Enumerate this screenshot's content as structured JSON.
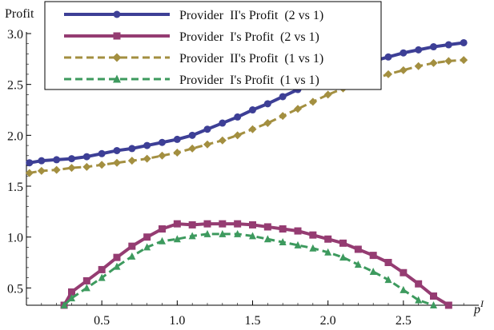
{
  "chart_data": {
    "type": "line",
    "title": "",
    "ylabel": "Profit",
    "xlabel": "p",
    "xlabel_superscript": "I",
    "xlim": [
      0,
      3.0
    ],
    "ylim": [
      0.33,
      3.0
    ],
    "xticks": [
      {
        "value": 0.5,
        "label": "0.5"
      },
      {
        "value": 1.0,
        "label": "1.0"
      },
      {
        "value": 1.5,
        "label": "1.5"
      },
      {
        "value": 2.0,
        "label": "2.0"
      },
      {
        "value": 2.5,
        "label": "2.5"
      }
    ],
    "yticks": [
      {
        "value": 0.5,
        "label": "0.5"
      },
      {
        "value": 1.0,
        "label": "1.0"
      },
      {
        "value": 1.5,
        "label": "1.5"
      },
      {
        "value": 2.0,
        "label": "2.0"
      },
      {
        "value": 2.5,
        "label": "2.5"
      },
      {
        "value": 3.0,
        "label": "3.0"
      }
    ],
    "legend_position": "top-center",
    "series": [
      {
        "name": "Provider  II's Profit  (2 vs 1)",
        "color": "#3d3f96",
        "dash": "solid",
        "marker": "circle",
        "x": [
          0.02,
          0.1,
          0.2,
          0.3,
          0.4,
          0.5,
          0.6,
          0.7,
          0.8,
          0.9,
          1.0,
          1.1,
          1.2,
          1.3,
          1.4,
          1.5,
          1.6,
          1.7,
          1.8,
          1.9,
          2.0,
          2.1,
          2.2,
          2.3,
          2.4,
          2.5,
          2.6,
          2.7,
          2.8,
          2.9
        ],
        "y": [
          1.73,
          1.75,
          1.76,
          1.77,
          1.79,
          1.82,
          1.85,
          1.87,
          1.9,
          1.93,
          1.96,
          2.0,
          2.06,
          2.12,
          2.18,
          2.25,
          2.31,
          2.38,
          2.45,
          2.52,
          2.58,
          2.63,
          2.68,
          2.73,
          2.77,
          2.81,
          2.84,
          2.87,
          2.89,
          2.91
        ]
      },
      {
        "name": "Provider  I's Profit  (2 vs 1)",
        "color": "#953c72",
        "dash": "solid",
        "marker": "square",
        "x": [
          0.25,
          0.3,
          0.4,
          0.5,
          0.6,
          0.7,
          0.8,
          0.9,
          1.0,
          1.1,
          1.2,
          1.3,
          1.4,
          1.5,
          1.6,
          1.7,
          1.8,
          1.9,
          2.0,
          2.1,
          2.2,
          2.3,
          2.4,
          2.5,
          2.6,
          2.7,
          2.8
        ],
        "y": [
          0.33,
          0.46,
          0.57,
          0.68,
          0.8,
          0.91,
          1.0,
          1.08,
          1.13,
          1.12,
          1.13,
          1.13,
          1.13,
          1.12,
          1.1,
          1.08,
          1.06,
          1.02,
          0.98,
          0.94,
          0.88,
          0.82,
          0.75,
          0.65,
          0.54,
          0.42,
          0.33
        ]
      },
      {
        "name": "Provider  II's Profit  (1 vs 1)",
        "color": "#a38f40",
        "dash": "dashed",
        "marker": "diamond",
        "x": [
          0.02,
          0.1,
          0.2,
          0.3,
          0.4,
          0.5,
          0.6,
          0.7,
          0.8,
          0.9,
          1.0,
          1.1,
          1.2,
          1.3,
          1.4,
          1.5,
          1.6,
          1.7,
          1.8,
          1.9,
          2.0,
          2.1,
          2.2,
          2.3,
          2.4,
          2.5,
          2.6,
          2.7,
          2.8,
          2.9
        ],
        "y": [
          1.63,
          1.65,
          1.66,
          1.68,
          1.69,
          1.71,
          1.73,
          1.75,
          1.77,
          1.8,
          1.83,
          1.87,
          1.91,
          1.95,
          2.0,
          2.06,
          2.12,
          2.19,
          2.26,
          2.33,
          2.4,
          2.46,
          2.51,
          2.55,
          2.6,
          2.64,
          2.68,
          2.71,
          2.73,
          2.74
        ]
      },
      {
        "name": "Provider  I's Profit  (1 vs 1)",
        "color": "#3d9a5e",
        "dash": "dashed",
        "marker": "triangle",
        "x": [
          0.25,
          0.3,
          0.4,
          0.5,
          0.6,
          0.7,
          0.8,
          0.9,
          1.0,
          1.1,
          1.2,
          1.3,
          1.4,
          1.5,
          1.6,
          1.7,
          1.8,
          1.9,
          2.0,
          2.1,
          2.2,
          2.3,
          2.4,
          2.5,
          2.6,
          2.7
        ],
        "y": [
          0.33,
          0.4,
          0.5,
          0.6,
          0.71,
          0.81,
          0.9,
          0.96,
          0.98,
          1.01,
          1.03,
          1.03,
          1.03,
          1.01,
          0.98,
          0.95,
          0.92,
          0.89,
          0.85,
          0.8,
          0.73,
          0.66,
          0.58,
          0.48,
          0.38,
          0.33
        ]
      }
    ]
  }
}
